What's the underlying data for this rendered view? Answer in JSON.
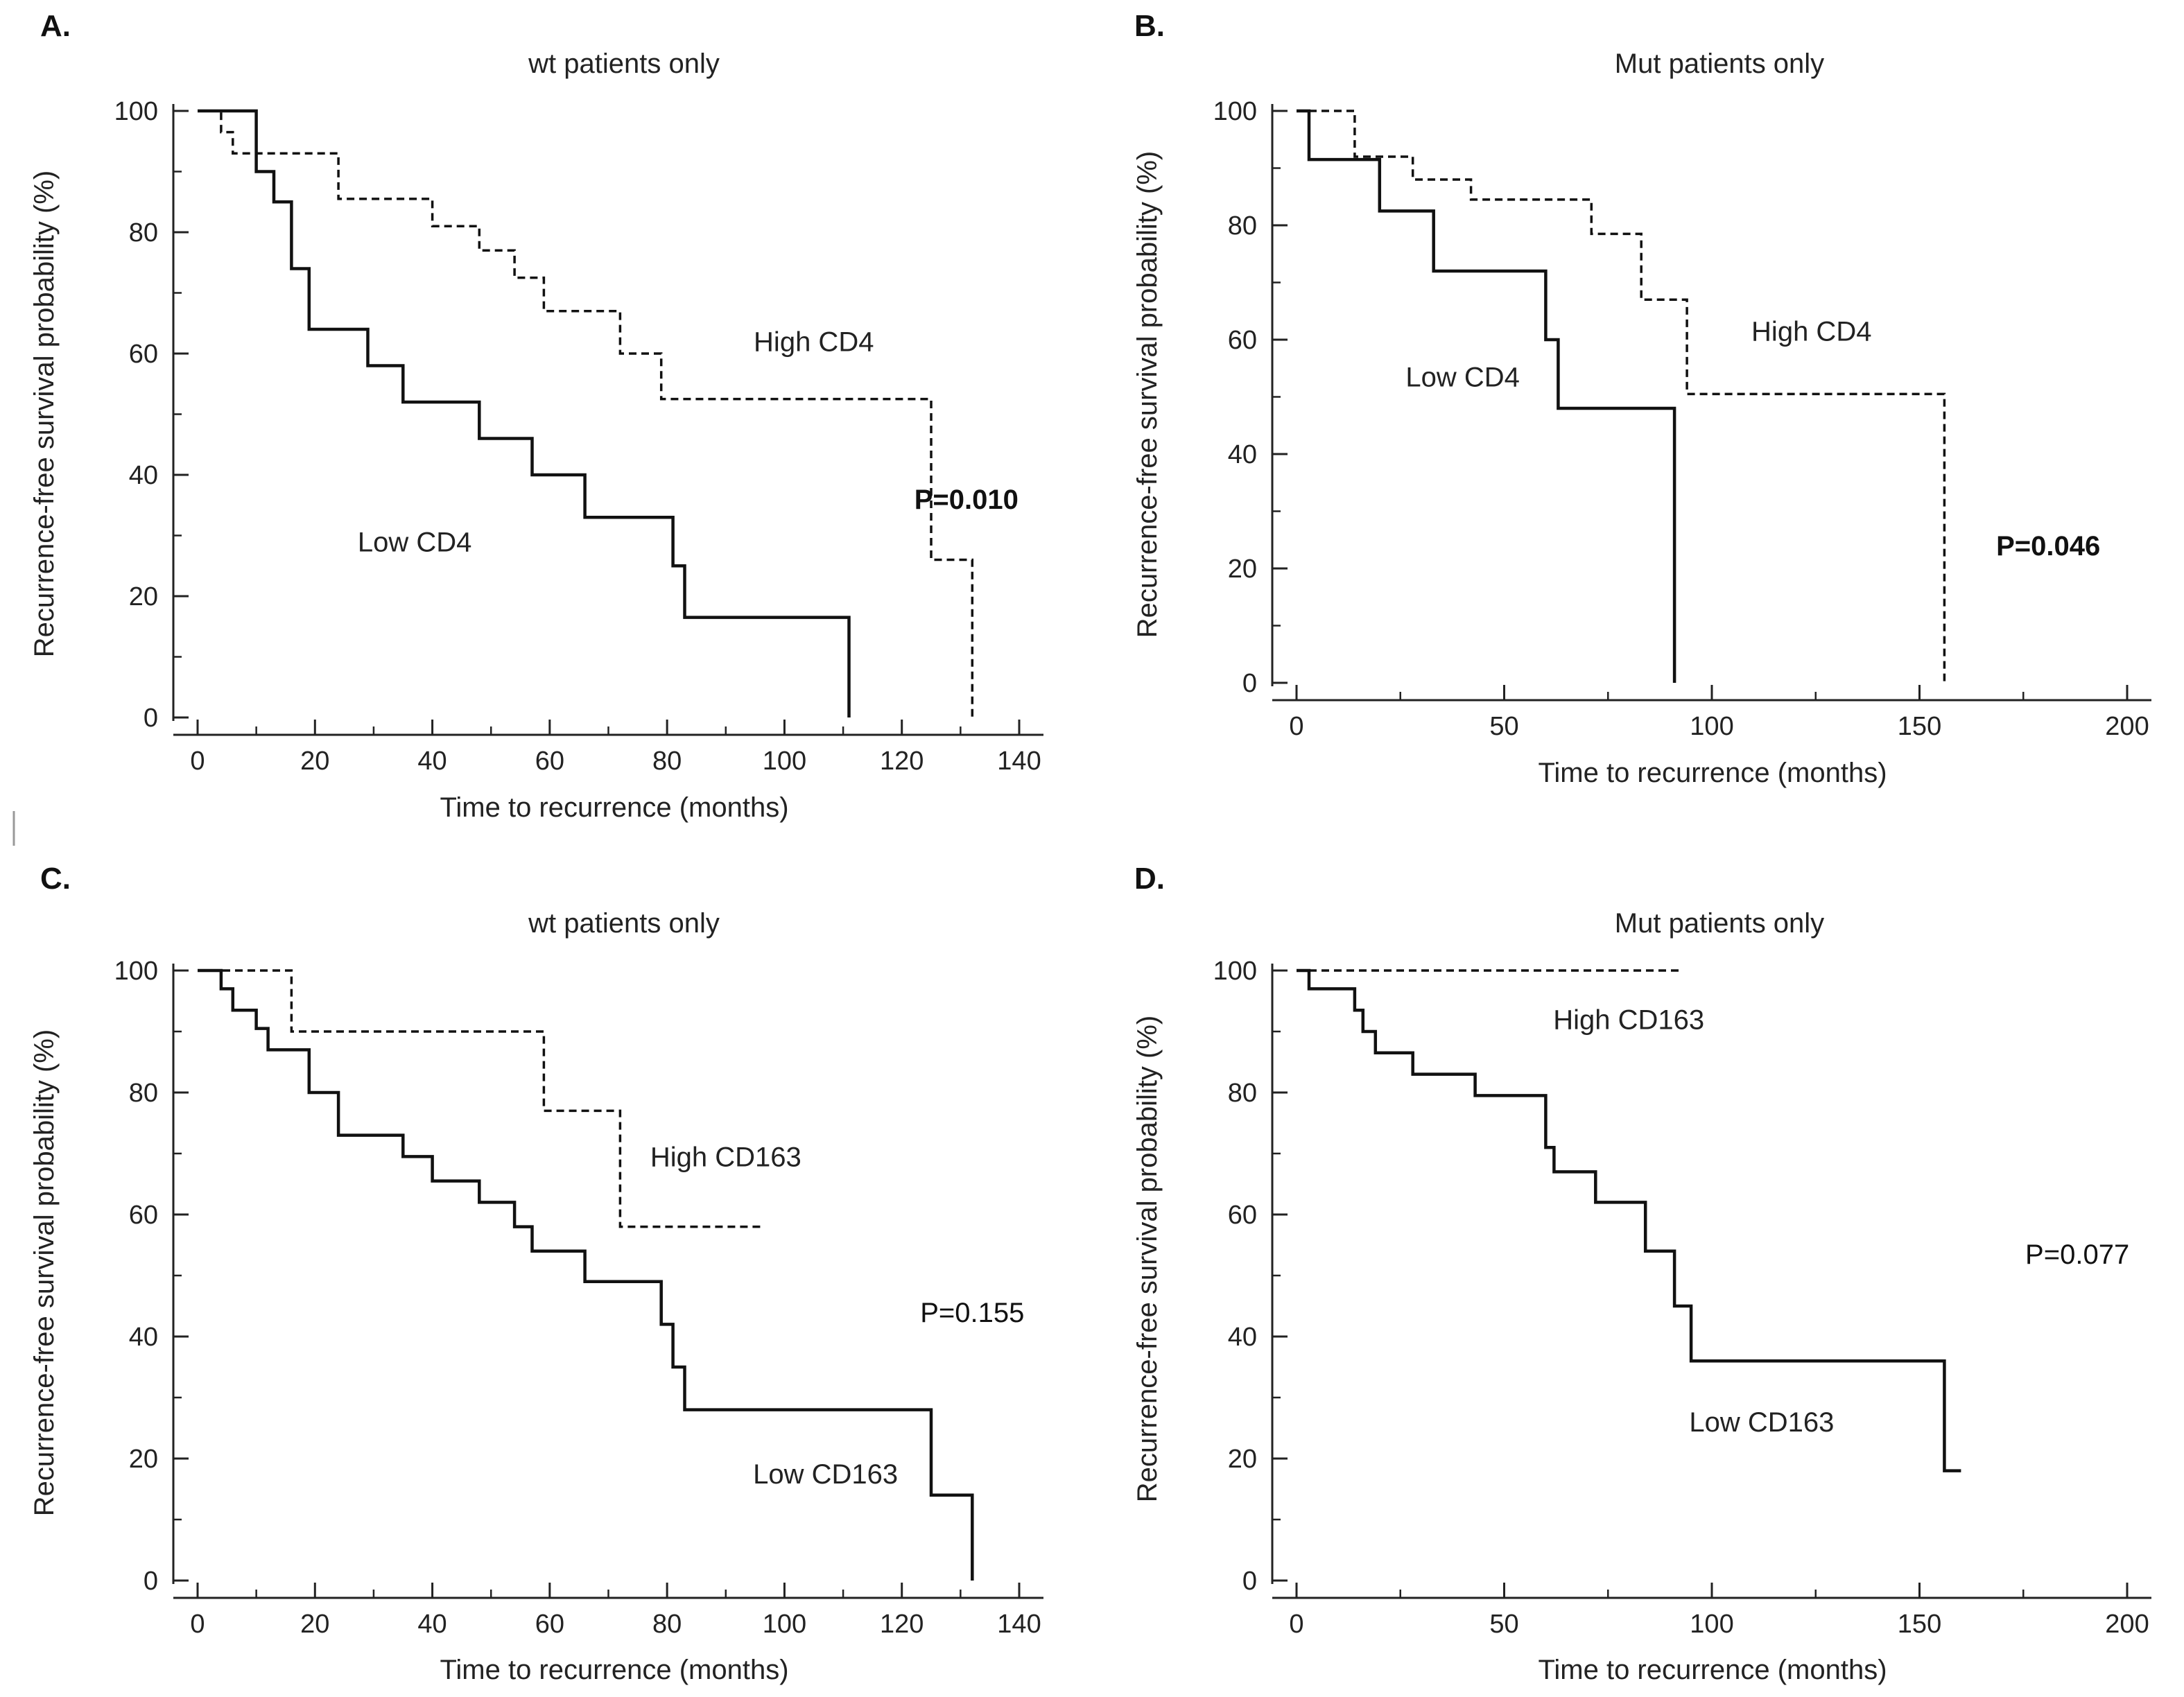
{
  "chart_data": [
    {
      "panel": "A.",
      "type": "line",
      "step": true,
      "title": "wt patients only",
      "xlabel": "Time to recurrence (months)",
      "ylabel": "Recurrence-free survival probability (%)",
      "xlim": [
        0,
        140
      ],
      "ylim": [
        0,
        100
      ],
      "xticks": [
        0,
        20,
        40,
        60,
        80,
        100,
        120,
        140
      ],
      "yticks": [
        0,
        20,
        40,
        60,
        80,
        100
      ],
      "series": [
        {
          "name": "Low CD4",
          "style": "solid",
          "x": [
            0,
            10,
            10,
            13,
            13,
            16,
            16,
            19,
            19,
            29,
            29,
            35,
            35,
            48,
            48,
            57,
            57,
            66,
            66,
            81,
            81,
            83,
            83,
            111,
            111
          ],
          "y": [
            100,
            100,
            90,
            90,
            85,
            85,
            74,
            74,
            64,
            64,
            58,
            58,
            52,
            52,
            46,
            46,
            40,
            40,
            33,
            33,
            25,
            25,
            16.5,
            16.5,
            0
          ]
        },
        {
          "name": "High CD4",
          "style": "dashed",
          "x": [
            0,
            4,
            4,
            6,
            6,
            24,
            24,
            40,
            40,
            48,
            48,
            54,
            54,
            59,
            59,
            72,
            72,
            79,
            79,
            125,
            125,
            132,
            132
          ],
          "y": [
            100,
            100,
            96.5,
            96.5,
            93,
            93,
            85.5,
            85.5,
            81,
            81,
            77,
            77,
            72.5,
            72.5,
            67,
            67,
            60,
            60,
            52.5,
            52.5,
            26,
            26,
            0
          ]
        }
      ],
      "annotations": [
        {
          "text": "High CD4",
          "x": 105,
          "y": 62
        },
        {
          "text": "Low CD4",
          "x": 37,
          "y": 29
        },
        {
          "text": "P=0.010",
          "x": 131,
          "y": 36,
          "bold": true
        }
      ]
    },
    {
      "panel": "B.",
      "type": "line",
      "step": true,
      "title": "Mut patients only",
      "xlabel": "Time to recurrence (months)",
      "ylabel": "Recurrence-free survival probability (%)",
      "xlim": [
        0,
        200
      ],
      "ylim": [
        0,
        100
      ],
      "xticks": [
        0,
        50,
        100,
        150,
        200
      ],
      "yticks": [
        0,
        20,
        40,
        60,
        80,
        100
      ],
      "series": [
        {
          "name": "Low CD4",
          "style": "solid",
          "x": [
            0,
            3,
            3,
            20,
            20,
            33,
            33,
            60,
            60,
            63,
            63,
            91,
            91
          ],
          "y": [
            100,
            100,
            91.5,
            91.5,
            82.5,
            82.5,
            72,
            72,
            60,
            60,
            48,
            48,
            0
          ]
        },
        {
          "name": "High CD4",
          "style": "dashed",
          "x": [
            0,
            14,
            14,
            28,
            28,
            42,
            42,
            71,
            71,
            83,
            83,
            94,
            94,
            156,
            156
          ],
          "y": [
            100,
            100,
            92,
            92,
            88,
            88,
            84.5,
            84.5,
            78.5,
            78.5,
            67,
            67,
            50.5,
            50.5,
            0
          ]
        }
      ],
      "annotations": [
        {
          "text": "High CD4",
          "x": 124,
          "y": 61.5
        },
        {
          "text": "Low CD4",
          "x": 40,
          "y": 53.5
        },
        {
          "text": "P=0.046",
          "x": 181,
          "y": 24,
          "bold": true
        }
      ]
    },
    {
      "panel": "C.",
      "type": "line",
      "step": true,
      "title": "wt patients only",
      "xlabel": "Time to recurrence (months)",
      "ylabel": "Recurrence-free survival probability (%)",
      "xlim": [
        0,
        140
      ],
      "ylim": [
        0,
        100
      ],
      "xticks": [
        0,
        20,
        40,
        60,
        80,
        100,
        120,
        140
      ],
      "yticks": [
        0,
        20,
        40,
        60,
        80,
        100
      ],
      "series": [
        {
          "name": "Low CD163",
          "style": "solid",
          "x": [
            0,
            4,
            4,
            6,
            6,
            10,
            10,
            12,
            12,
            19,
            19,
            24,
            24,
            35,
            35,
            40,
            40,
            48,
            48,
            54,
            54,
            57,
            57,
            66,
            66,
            79,
            79,
            81,
            81,
            83,
            83,
            125,
            125,
            132,
            132
          ],
          "y": [
            100,
            100,
            97,
            97,
            93.5,
            93.5,
            90.5,
            90.5,
            87,
            87,
            80,
            80,
            73,
            73,
            69.5,
            69.5,
            65.5,
            65.5,
            62,
            62,
            58,
            58,
            54,
            54,
            49,
            49,
            42,
            42,
            35,
            35,
            28,
            28,
            14,
            14,
            0
          ]
        },
        {
          "name": "High CD163",
          "style": "dashed",
          "x": [
            0,
            16,
            16,
            59,
            59,
            72,
            72,
            96
          ],
          "y": [
            100,
            100,
            90,
            90,
            77,
            77,
            58,
            58
          ]
        }
      ],
      "annotations": [
        {
          "text": "High CD163",
          "x": 90,
          "y": 69.5
        },
        {
          "text": "Low CD163",
          "x": 107,
          "y": 17.5
        },
        {
          "text": "P=0.155",
          "x": 132,
          "y": 44,
          "bold": false
        }
      ]
    },
    {
      "panel": "D.",
      "type": "line",
      "step": true,
      "title": "Mut patients only",
      "xlabel": "Time to recurrence (months)",
      "ylabel": "Recurrence-free survival probability (%)",
      "xlim": [
        0,
        200
      ],
      "ylim": [
        0,
        100
      ],
      "xticks": [
        0,
        50,
        100,
        150,
        200
      ],
      "yticks": [
        0,
        20,
        40,
        60,
        80,
        100
      ],
      "series": [
        {
          "name": "Low CD163",
          "style": "solid",
          "x": [
            0,
            3,
            3,
            14,
            14,
            16,
            16,
            19,
            19,
            28,
            28,
            43,
            43,
            60,
            60,
            62,
            62,
            72,
            72,
            84,
            84,
            91,
            91,
            95,
            95,
            156,
            156,
            160
          ],
          "y": [
            100,
            100,
            97,
            97,
            93.5,
            93.5,
            90,
            90,
            86.5,
            86.5,
            83,
            83,
            79.5,
            79.5,
            71,
            71,
            67,
            67,
            62,
            62,
            54,
            54,
            45,
            45,
            36,
            36,
            18,
            18
          ]
        },
        {
          "name": "High CD163",
          "style": "dashed",
          "x": [
            0,
            92
          ],
          "y": [
            100,
            100
          ]
        }
      ],
      "annotations": [
        {
          "text": "High CD163",
          "x": 80,
          "y": 92
        },
        {
          "text": "Low CD163",
          "x": 112,
          "y": 26
        },
        {
          "text": "P=0.077",
          "x": 188,
          "y": 53.5,
          "bold": false
        }
      ]
    }
  ]
}
